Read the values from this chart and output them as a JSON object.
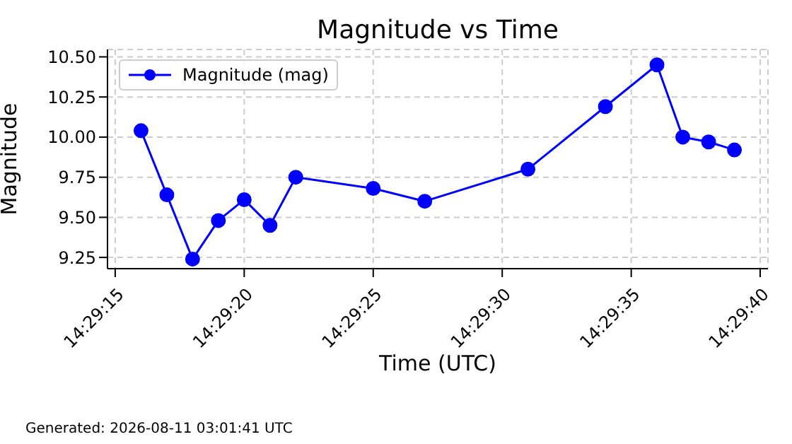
{
  "chart_data": {
    "type": "line",
    "title": "Magnitude vs Time",
    "xlabel": "Time (UTC)",
    "ylabel": "Magnitude",
    "x": [
      14.487778,
      14.488056,
      14.488333,
      14.488611,
      14.488889,
      14.489167,
      14.489444,
      14.490278,
      14.490833,
      14.491944,
      14.492778,
      14.493333,
      14.493611,
      14.493889,
      14.494167
    ],
    "series": [
      {
        "name": "Magnitude (mag)",
        "color": "#0000ff",
        "values": [
          10.04,
          9.64,
          9.24,
          9.48,
          9.61,
          9.45,
          9.75,
          9.68,
          9.6,
          9.8,
          10.19,
          10.45,
          10.0,
          9.97,
          9.92
        ]
      }
    ],
    "xlim": [
      14.487417,
      14.494528
    ],
    "xticks": [
      {
        "value": 14.4875,
        "label": "14:29:15"
      },
      {
        "value": 14.488889,
        "label": "14:29:20"
      },
      {
        "value": 14.490278,
        "label": "14:29:25"
      },
      {
        "value": 14.491667,
        "label": "14:29:30"
      },
      {
        "value": 14.493056,
        "label": "14:29:35"
      },
      {
        "value": 14.494444,
        "label": "14:29:40"
      }
    ],
    "ylim": [
      9.18,
      10.546
    ],
    "yticks": [
      {
        "value": 9.25,
        "label": "9.25"
      },
      {
        "value": 9.5,
        "label": "9.50"
      },
      {
        "value": 9.75,
        "label": "9.75"
      },
      {
        "value": 10,
        "label": "10.00"
      },
      {
        "value": 10.25,
        "label": "10.25"
      },
      {
        "value": 10.5,
        "label": "10.50"
      }
    ],
    "grid": true,
    "legend": "top left",
    "marker": "circle",
    "line_style": "solid",
    "annotations": [
      "Generated: 2026-08-11 03:01:41 UTC"
    ]
  }
}
